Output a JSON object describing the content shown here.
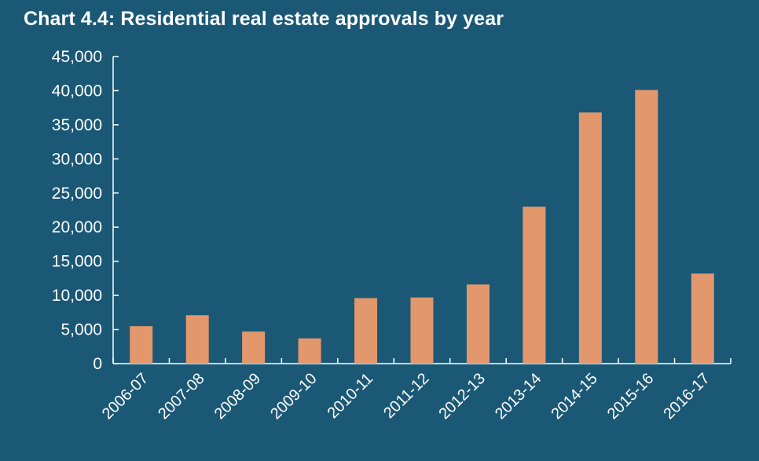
{
  "chart_data": {
    "type": "bar",
    "title": "Chart 4.4: Residential real estate approvals by year",
    "xlabel": "",
    "ylabel": "",
    "categories": [
      "2006-07",
      "2007-08",
      "2008-09",
      "2009-10",
      "2010-11",
      "2011-12",
      "2012-13",
      "2013-14",
      "2014-15",
      "2015-16",
      "2016-17"
    ],
    "values": [
      5500,
      7100,
      4700,
      3700,
      9600,
      9700,
      11600,
      23000,
      36800,
      40100,
      13200
    ],
    "ylim": [
      0,
      45000
    ],
    "yticks": [
      "0",
      "5,000",
      "10,000",
      "15,000",
      "20,000",
      "25,000",
      "30,000",
      "35,000",
      "40,000",
      "45,000"
    ],
    "grid": false,
    "legend": "none",
    "colors": {
      "background": "#1a5876",
      "bar": "#e3976d",
      "axis": "#ffffff",
      "text": "#ffffff"
    }
  }
}
